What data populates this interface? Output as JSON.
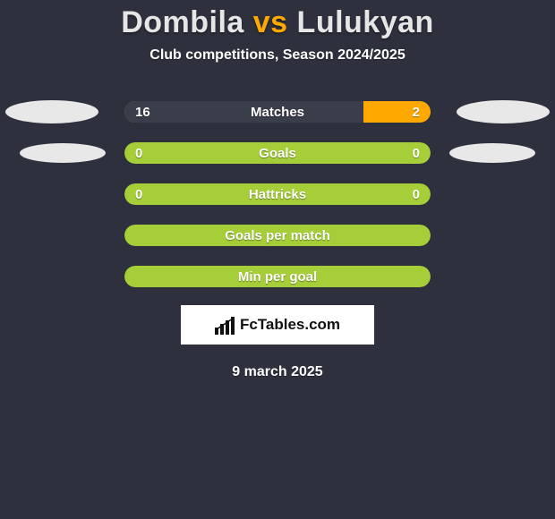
{
  "background_color": "#2e313d",
  "title": {
    "player1": "Dombila",
    "vs": "vs",
    "player2": "Lulukyan",
    "player1_color": "#e6e6e6",
    "vs_color": "#ffa800",
    "player2_color": "#e6e6e6"
  },
  "subtitle": {
    "text": "Club competitions, Season 2024/2025",
    "color": "#ffffff"
  },
  "ellipse_color": "#e8e8e8",
  "bar_base_color": "#a6ce39",
  "player1_bar_color": "#3a3d4a",
  "player2_bar_color": "#ffa800",
  "text_color": "#ffffff",
  "rows": [
    {
      "label": "Matches",
      "left_value": "16",
      "right_value": "2",
      "left_fill_pct": 78,
      "right_fill_pct": 22,
      "show_ellipses": true,
      "ellipse_size": "large"
    },
    {
      "label": "Goals",
      "left_value": "0",
      "right_value": "0",
      "left_fill_pct": 0,
      "right_fill_pct": 0,
      "show_ellipses": true,
      "ellipse_size": "small"
    },
    {
      "label": "Hattricks",
      "left_value": "0",
      "right_value": "0",
      "left_fill_pct": 0,
      "right_fill_pct": 0,
      "show_ellipses": false
    },
    {
      "label": "Goals per match",
      "left_value": "",
      "right_value": "",
      "left_fill_pct": 0,
      "right_fill_pct": 0,
      "show_ellipses": false
    },
    {
      "label": "Min per goal",
      "left_value": "",
      "right_value": "",
      "left_fill_pct": 0,
      "right_fill_pct": 0,
      "show_ellipses": false
    }
  ],
  "logo": {
    "text": "FcTables.com"
  },
  "date": "9 march 2025"
}
